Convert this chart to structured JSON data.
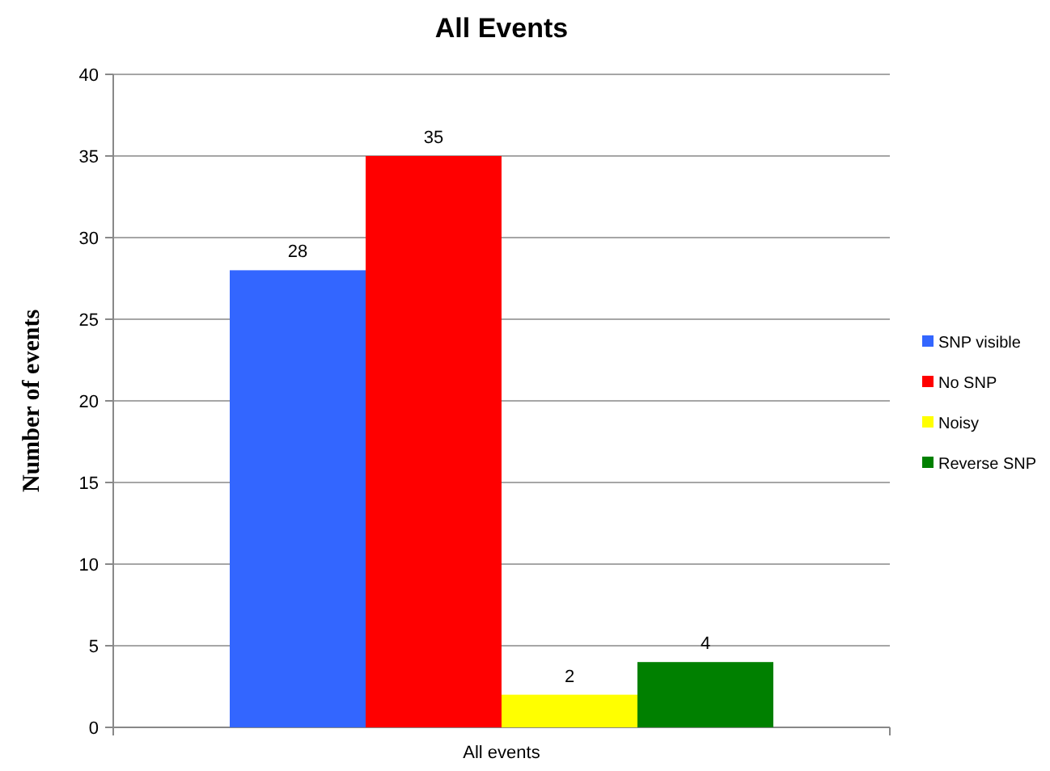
{
  "chart_data": {
    "type": "bar",
    "title": "All Events",
    "ylabel": "Number of events",
    "categories": [
      "All events"
    ],
    "series": [
      {
        "name": "SNP visible",
        "color": "#3366ff",
        "values": [
          28
        ]
      },
      {
        "name": "No SNP",
        "color": "#ff0000",
        "values": [
          35
        ]
      },
      {
        "name": "Noisy",
        "color": "#ffff00",
        "values": [
          2
        ]
      },
      {
        "name": "Reverse SNP",
        "color": "#008000",
        "values": [
          4
        ]
      }
    ],
    "ylim": [
      0,
      40
    ],
    "yticks": [
      0,
      5,
      10,
      15,
      20,
      25,
      30,
      35,
      40
    ],
    "grid": "y",
    "legend": "right",
    "data_labels": true
  }
}
